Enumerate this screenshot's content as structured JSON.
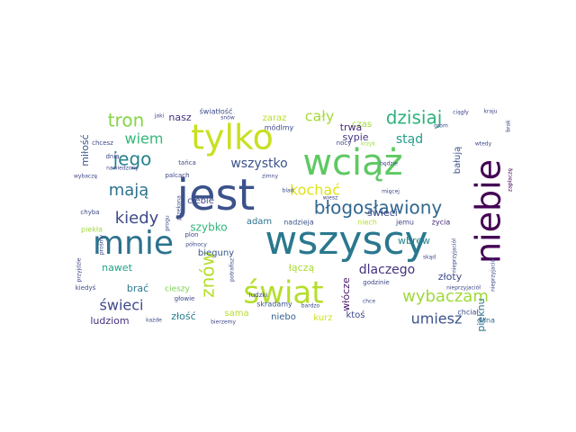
{
  "words": [
    {
      "text": "wszyscy",
      "color": "#2a788e"
    },
    {
      "text": "jest",
      "color": "#3b528b"
    },
    {
      "text": "tylko",
      "color": "#c8e020"
    },
    {
      "text": "wciąż",
      "color": "#5ec962"
    },
    {
      "text": "mnie",
      "color": "#2c728e"
    },
    {
      "text": "niebie",
      "color": "#440154"
    },
    {
      "text": "świat",
      "color": "#b5de2b"
    },
    {
      "text": "błogosławiony",
      "color": "#31688e"
    },
    {
      "text": "jego",
      "color": "#26828e"
    },
    {
      "text": "dzisiaj",
      "color": "#2db27d"
    },
    {
      "text": "tron",
      "color": "#86d549"
    },
    {
      "text": "wybaczam",
      "color": "#a0da39"
    },
    {
      "text": "kiedy",
      "color": "#3e4a89"
    },
    {
      "text": "mają",
      "color": "#2c728e"
    },
    {
      "text": "wiem",
      "color": "#35b779"
    },
    {
      "text": "znów",
      "color": "#b5de2b"
    },
    {
      "text": "umiesz",
      "color": "#3b528b"
    },
    {
      "text": "świeci",
      "color": "#3e4989"
    },
    {
      "text": "kochać",
      "color": "#dde318"
    },
    {
      "text": "wszystko",
      "color": "#3b528b"
    },
    {
      "text": "dlaczego",
      "color": "#46327e"
    },
    {
      "text": "cały",
      "color": "#a5db36"
    },
    {
      "text": "stąd",
      "color": "#1f9e89"
    },
    {
      "text": "wbrew",
      "color": "#26828e"
    },
    {
      "text": "nawet",
      "color": "#20a386"
    },
    {
      "text": "złoty",
      "color": "#3e4a89"
    },
    {
      "text": "szybko",
      "color": "#31b57b"
    },
    {
      "text": "łączą",
      "color": "#a8db34"
    },
    {
      "text": "ludziom",
      "color": "#46307e"
    },
    {
      "text": "czas",
      "color": "#a0da39"
    },
    {
      "text": "trwa",
      "color": "#472d7b"
    },
    {
      "text": "sypie",
      "color": "#453781"
    },
    {
      "text": "świeci",
      "color": "#3e4a89"
    },
    {
      "text": "nasz",
      "color": "#46327e"
    },
    {
      "text": "zaraz",
      "color": "#b8de29"
    },
    {
      "text": "ciebie",
      "color": "#3e4989"
    },
    {
      "text": "adam",
      "color": "#2d718e"
    },
    {
      "text": "bieguny",
      "color": "#38588c"
    },
    {
      "text": "brać",
      "color": "#2a788e"
    },
    {
      "text": "złość",
      "color": "#287d8e"
    },
    {
      "text": "sama",
      "color": "#b8de29"
    },
    {
      "text": "niebo",
      "color": "#355f8d"
    },
    {
      "text": "kurz",
      "color": "#d0e11c"
    },
    {
      "text": "ktoś",
      "color": "#3e4989"
    },
    {
      "text": "włócze",
      "color": "#48186a"
    },
    {
      "text": "pięknu",
      "color": "#2c728e"
    },
    {
      "text": "bałują",
      "color": "#3b528b"
    },
    {
      "text": "miłość",
      "color": "#3b528b"
    },
    {
      "text": "cieszy",
      "color": "#7ad151"
    },
    {
      "text": "dana",
      "color": "#31688e"
    },
    {
      "text": "chciał",
      "color": "#3e4989"
    },
    {
      "text": "jemu",
      "color": "#3e4989"
    },
    {
      "text": "życia",
      "color": "#482878"
    },
    {
      "text": "niech",
      "color": "#b5de2b"
    },
    {
      "text": "nadzieja",
      "color": "#3b528b"
    },
    {
      "text": "światłość",
      "color": "#3e4989"
    },
    {
      "text": "módlmy",
      "color": "#3e4989"
    },
    {
      "text": "skradamy",
      "color": "#3b528b"
    },
    {
      "text": "piekła",
      "color": "#9fda3a"
    },
    {
      "text": "nocy",
      "color": "#3e4989"
    },
    {
      "text": "krzyk",
      "color": "#a0da39"
    },
    {
      "text": "ciągły",
      "color": "#3e4989"
    },
    {
      "text": "grom",
      "color": "#3e4989"
    },
    {
      "text": "kraju",
      "color": "#3e4989"
    },
    {
      "text": "brak",
      "color": "#3e4989"
    },
    {
      "text": "wtedy",
      "color": "#3e4989"
    },
    {
      "text": "zapłaczę",
      "color": "#440154"
    },
    {
      "text": "nieprzyjaciół",
      "color": "#3e4989"
    },
    {
      "text": "chcesz",
      "color": "#3e4989"
    },
    {
      "text": "dnia",
      "color": "#3e4989"
    },
    {
      "text": "nawiedzony",
      "color": "#3e4989"
    },
    {
      "text": "jaki",
      "color": "#3e4989"
    },
    {
      "text": "snów",
      "color": "#3e4989"
    },
    {
      "text": "tańca",
      "color": "#3e4989"
    },
    {
      "text": "palcach",
      "color": "#3e4989"
    },
    {
      "text": "zimny",
      "color": "#3e4989"
    },
    {
      "text": "blad",
      "color": "#3e4989"
    },
    {
      "text": "przekona",
      "color": "#3e4989"
    },
    {
      "text": "wybaczę",
      "color": "#3e4989"
    },
    {
      "text": "chyba",
      "color": "#3e4989"
    },
    {
      "text": "progu",
      "color": "#3e4989"
    },
    {
      "text": "przyjdzie",
      "color": "#3e4989"
    },
    {
      "text": "prośmy",
      "color": "#3e4989"
    },
    {
      "text": "plon",
      "color": "#3e4989"
    },
    {
      "text": "północy",
      "color": "#3e4989"
    },
    {
      "text": "potrafisz",
      "color": "#3e4989"
    },
    {
      "text": "ludzki",
      "color": "#3e4989"
    },
    {
      "text": "głowie",
      "color": "#3e4989"
    },
    {
      "text": "kiedyś",
      "color": "#3e4989"
    },
    {
      "text": "każde",
      "color": "#3e4989"
    },
    {
      "text": "bierzemy",
      "color": "#3e4989"
    },
    {
      "text": "chce",
      "color": "#3e4989"
    },
    {
      "text": "godzinie",
      "color": "#3e4989"
    },
    {
      "text": "skąd",
      "color": "#3e4989"
    },
    {
      "text": "nieprzyjaciół",
      "color": "#3e4989"
    },
    {
      "text": "bardzo",
      "color": "#3e4989"
    },
    {
      "text": "wiesz",
      "color": "#3e4989"
    },
    {
      "text": "będzie",
      "color": "#3e4989"
    },
    {
      "text": "mięcej",
      "color": "#3e4989"
    },
    {
      "text": "nieprzyjaciół",
      "color": "#3e4989"
    }
  ]
}
